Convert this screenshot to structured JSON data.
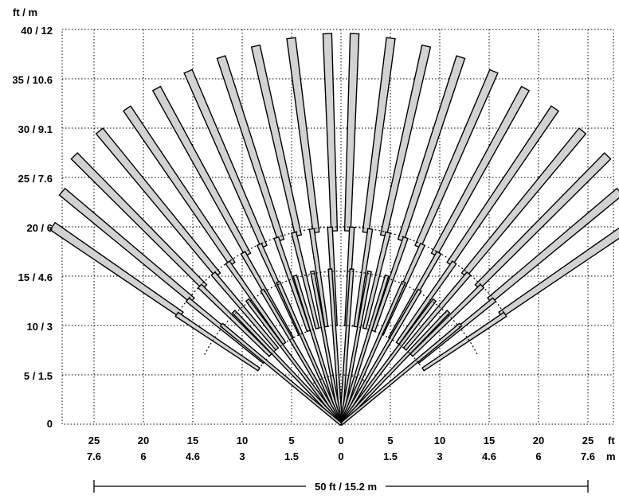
{
  "diagram": {
    "y_unit_label": "ft / m",
    "x_unit_ft": "ft",
    "x_unit_m": "m",
    "y_ticks": [
      "0",
      "5 / 1.5",
      "10 / 3",
      "15 / 4.6",
      "20 / 6",
      "25 / 7.6",
      "30 / 9.1",
      "35 / 10.6",
      "40 / 12"
    ],
    "x_ticks_ft": [
      "25",
      "20",
      "15",
      "10",
      "5",
      "0",
      "5",
      "10",
      "15",
      "20",
      "25"
    ],
    "x_ticks_m": [
      "7.6",
      "6",
      "4.6",
      "3",
      "1.5",
      "0",
      "1.5",
      "3",
      "4.6",
      "6",
      "7.6"
    ],
    "dimension_label": "50 ft / 15.2 m",
    "colors": {
      "beam_fill": "#d2d2d2",
      "outline": "#000000",
      "background": "#ffffff"
    },
    "beams": [
      {
        "zone": "long",
        "count": 22,
        "range_ft": 40
      },
      {
        "zone": "mid",
        "count": 22,
        "range_ft": 20
      },
      {
        "zone": "short",
        "count": 16,
        "range_ft": 15
      }
    ]
  }
}
